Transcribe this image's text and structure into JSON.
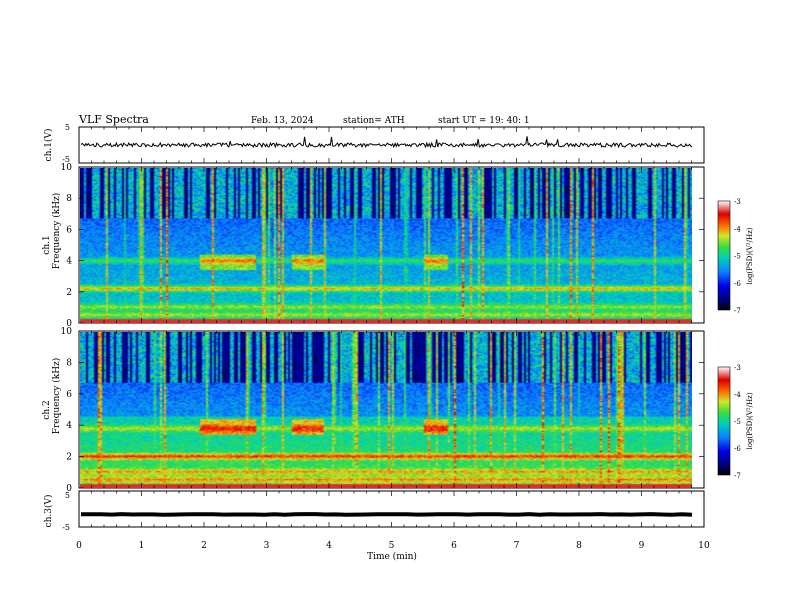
{
  "header": {
    "title": "VLF  Spectra",
    "date": "Feb. 13, 2024",
    "station": "station= ATH",
    "start_ut": "start  UT  =    19: 40: 1"
  },
  "chart_data": [
    {
      "type": "line",
      "id": "ch1_waveform",
      "ylabel": "ch.1(V)",
      "yticks": [
        "5",
        "-5"
      ],
      "ylim": [
        -5,
        5
      ],
      "xlim": [
        0,
        10
      ],
      "baseline_v": 0.0,
      "series_color": "#000000"
    },
    {
      "type": "heatmap",
      "id": "ch1_spectrogram",
      "ylabel": "ch.1\nFrequency (kHz)",
      "ylabel_lines": [
        "ch.1",
        "Frequency (kHz)"
      ],
      "yticks": [
        "0",
        "2",
        "4",
        "6",
        "8",
        "10"
      ],
      "ylim": [
        0,
        10
      ],
      "xlim": [
        0,
        9.8
      ],
      "colorbar": {
        "label": "log(PSD)(V²/Hz)",
        "ticks": [
          "-3",
          "-4",
          "-5",
          "-6",
          "-7"
        ],
        "range": [
          -7,
          -3
        ],
        "colors": [
          "#000000",
          "#0000c8",
          "#0a78ff",
          "#00d2b4",
          "#3cdc3c",
          "#f0e628",
          "#ff5000",
          "#dc0000",
          "#ffffff"
        ]
      },
      "bands_khz": [
        0.5,
        1.0,
        2.2,
        4.0
      ],
      "hiss_segments_min": [
        [
          1.9,
          2.8
        ],
        [
          3.4,
          3.9
        ],
        [
          5.5,
          5.9
        ]
      ]
    },
    {
      "type": "heatmap",
      "id": "ch2_spectrogram",
      "ylabel_lines": [
        "ch.2",
        "Frequency (kHz)"
      ],
      "yticks": [
        "0",
        "2",
        "4",
        "6",
        "8",
        "10"
      ],
      "ylim": [
        0,
        10
      ],
      "xlim": [
        0,
        9.8
      ],
      "colorbar": {
        "label": "log(PSD)(V²/Hz)",
        "ticks": [
          "-3",
          "-4",
          "-5",
          "-6",
          "-7"
        ],
        "range": [
          -7,
          -3
        ]
      },
      "bands_khz": [
        0.5,
        1.0,
        2.0,
        3.8
      ],
      "hiss_segments_min": [
        [
          1.9,
          2.8
        ],
        [
          3.4,
          3.9
        ],
        [
          5.5,
          5.9
        ]
      ]
    },
    {
      "type": "line",
      "id": "ch3_waveform",
      "ylabel": "ch.3(V)",
      "yticks": [
        "5",
        "-5"
      ],
      "ylim": [
        -5,
        5
      ],
      "xlim": [
        0,
        10
      ],
      "baseline_v": -1.5,
      "series_color": "#000000"
    }
  ],
  "xaxis": {
    "label": "Time  (min)",
    "ticks": [
      "0",
      "1",
      "2",
      "3",
      "4",
      "5",
      "6",
      "7",
      "8",
      "9",
      "10"
    ]
  }
}
